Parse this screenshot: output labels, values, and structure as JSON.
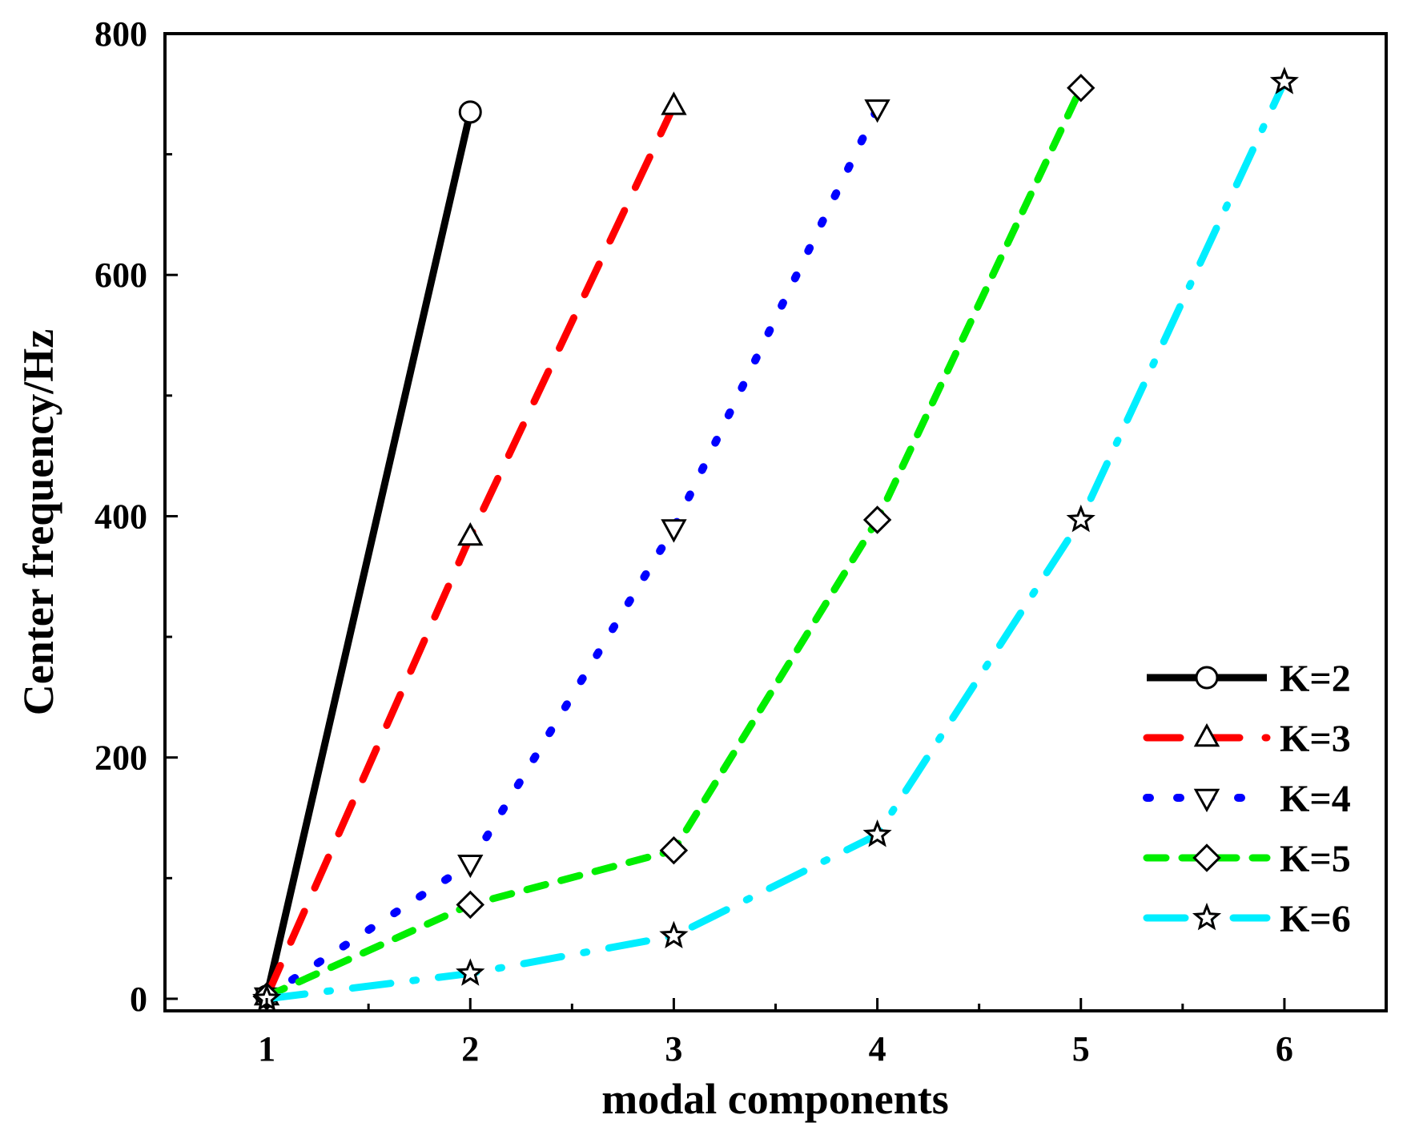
{
  "chart_data": {
    "type": "line",
    "title": "",
    "xlabel": "modal components",
    "ylabel": "Center frequency/Hz",
    "xlim": [
      0.5,
      6.5
    ],
    "ylim": [
      -10,
      800
    ],
    "xticks": [
      1,
      2,
      3,
      4,
      5,
      6
    ],
    "yticks": [
      0,
      200,
      400,
      600,
      800
    ],
    "xtick_labels": [
      "1",
      "2",
      "3",
      "4",
      "5",
      "6"
    ],
    "ytick_labels": [
      "0",
      "200",
      "400",
      "600",
      "800"
    ],
    "grid": false,
    "legend_position": "lower-right",
    "series": [
      {
        "name": "K=2",
        "color": "#000000",
        "line_style": "solid",
        "marker": "circle",
        "x": [
          1,
          2
        ],
        "y": [
          2,
          735
        ]
      },
      {
        "name": "K=3",
        "color": "#ff0000",
        "line_style": "dashed",
        "marker": "triangle-up",
        "x": [
          1,
          2,
          3
        ],
        "y": [
          2,
          383,
          740
        ]
      },
      {
        "name": "K=4",
        "color": "#0000ff",
        "line_style": "dotted",
        "marker": "triangle-down",
        "x": [
          1,
          2,
          3,
          4
        ],
        "y": [
          2,
          112,
          390,
          738
        ]
      },
      {
        "name": "K=5",
        "color": "#00ee00",
        "line_style": "short-dash",
        "marker": "diamond",
        "x": [
          1,
          2,
          3,
          4,
          5
        ],
        "y": [
          2,
          78,
          123,
          397,
          755
        ]
      },
      {
        "name": "K=6",
        "color": "#00eeff",
        "line_style": "dash-dot",
        "marker": "star",
        "x": [
          1,
          2,
          3,
          4,
          5,
          6
        ],
        "y": [
          0,
          21,
          52,
          136,
          397,
          760
        ]
      }
    ]
  }
}
